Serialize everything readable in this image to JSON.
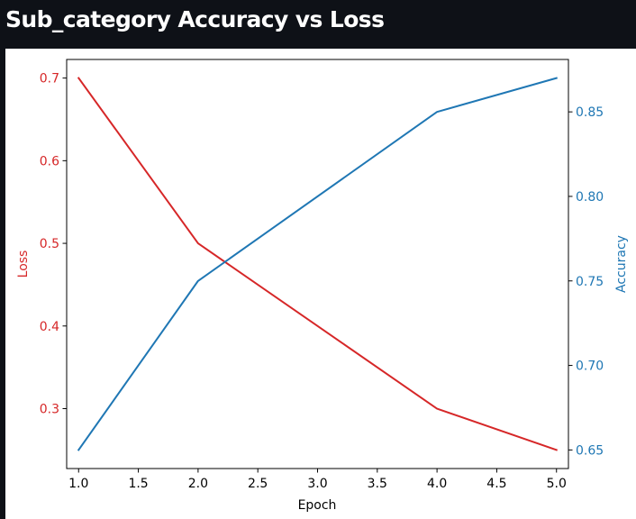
{
  "page": {
    "title": "Sub_category Accuracy vs Loss"
  },
  "chart_data": {
    "type": "line",
    "x": [
      1,
      2,
      4,
      5
    ],
    "xlabel": "Epoch",
    "xlim": [
      0.9,
      5.1
    ],
    "x_ticks": [
      "1.0",
      "1.5",
      "2.0",
      "2.5",
      "3.0",
      "3.5",
      "4.0",
      "4.5",
      "5.0"
    ],
    "grid": false,
    "series": [
      {
        "name": "Loss",
        "axis": "left",
        "color": "#d62728",
        "values": [
          0.7,
          0.5,
          0.3,
          0.25
        ]
      },
      {
        "name": "Accuracy",
        "axis": "right",
        "color": "#1f77b4",
        "values": [
          0.65,
          0.75,
          0.85,
          0.87
        ]
      }
    ],
    "y_left": {
      "label": "Loss",
      "color": "#d62728",
      "ylim": [
        0.2275,
        0.7225
      ],
      "ticks": [
        "0.3",
        "0.4",
        "0.5",
        "0.6",
        "0.7"
      ]
    },
    "y_right": {
      "label": "Accuracy",
      "color": "#1f77b4",
      "ylim": [
        0.639,
        0.881
      ],
      "ticks": [
        "0.65",
        "0.70",
        "0.75",
        "0.80",
        "0.85"
      ]
    }
  }
}
